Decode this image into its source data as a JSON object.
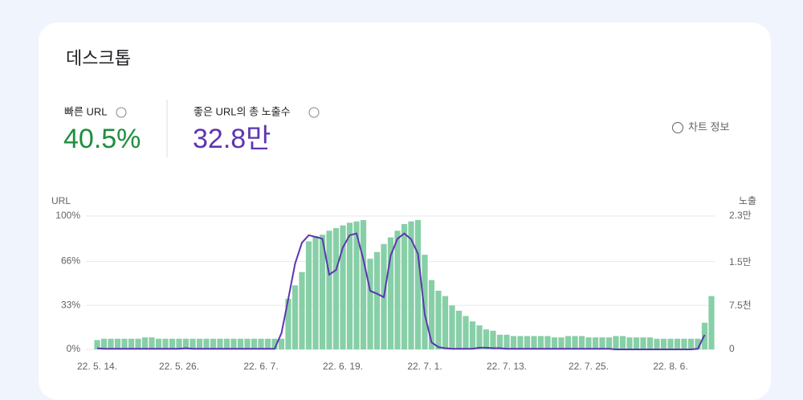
{
  "header": {
    "title": "데스크톱",
    "metrics": [
      {
        "label": "빠른 URL",
        "value": "40.5%",
        "color": "#1e8e3e"
      },
      {
        "label": "좋은 URL의 총 노출수",
        "value": "32.8만",
        "color": "#5e35b1"
      }
    ],
    "info": "차트 정보"
  },
  "chart_data": {
    "type": "bar",
    "y_label": "URL",
    "y2_label": "노출",
    "categories": [
      "22. 5. 14.",
      null,
      null,
      null,
      null,
      null,
      null,
      null,
      null,
      null,
      null,
      null,
      "22. 5. 26.",
      null,
      null,
      null,
      null,
      null,
      null,
      null,
      null,
      null,
      null,
      null,
      "22. 6. 7.",
      null,
      null,
      null,
      null,
      null,
      null,
      null,
      null,
      null,
      null,
      null,
      "22. 6. 19.",
      null,
      null,
      null,
      null,
      null,
      null,
      null,
      null,
      null,
      null,
      null,
      "22. 7. 1.",
      null,
      null,
      null,
      null,
      null,
      null,
      null,
      null,
      null,
      null,
      null,
      "22. 7. 13.",
      null,
      null,
      null,
      null,
      null,
      null,
      null,
      null,
      null,
      null,
      null,
      "22. 7. 25.",
      null,
      null,
      null,
      null,
      null,
      null,
      null,
      null,
      null,
      null,
      null,
      "22. 8. 6.",
      null,
      null,
      null,
      null,
      null,
      null
    ],
    "series": [
      {
        "name": "URL",
        "type": "bar",
        "color": "#87cfa7",
        "values": [
          7,
          8,
          8,
          8,
          8,
          8,
          8,
          9,
          9,
          8,
          8,
          8,
          8,
          8,
          8,
          8,
          8,
          8,
          8,
          8,
          8,
          8,
          8,
          8,
          8,
          8,
          8,
          8,
          38,
          48,
          58,
          81,
          85,
          86,
          89,
          91,
          93,
          95,
          96,
          97,
          68,
          73,
          79,
          84,
          89,
          94,
          96,
          97,
          71,
          52,
          44,
          40,
          33,
          29,
          25,
          21,
          18,
          15,
          14,
          11,
          11,
          10,
          10,
          10,
          10,
          10,
          10,
          9,
          9,
          10,
          10,
          10,
          9,
          9,
          9,
          9,
          10,
          10,
          9,
          9,
          9,
          9,
          8,
          8,
          8,
          8,
          8,
          8,
          8,
          20,
          40
        ]
      },
      {
        "name": "노출",
        "type": "line",
        "axis": "y2",
        "color": "#5e35b1",
        "values": [
          200,
          100,
          100,
          100,
          100,
          100,
          100,
          100,
          100,
          100,
          100,
          100,
          100,
          200,
          100,
          100,
          100,
          100,
          100,
          100,
          100,
          100,
          100,
          100,
          100,
          100,
          100,
          2800,
          8700,
          14800,
          18400,
          19700,
          19400,
          19100,
          12900,
          13700,
          17600,
          19700,
          20000,
          15500,
          10100,
          9600,
          9000,
          16200,
          19100,
          20000,
          19000,
          16500,
          6000,
          1200,
          400,
          200,
          100,
          100,
          100,
          100,
          300,
          300,
          200,
          200,
          100,
          100,
          100,
          100,
          100,
          100,
          100,
          100,
          100,
          100,
          100,
          100,
          100,
          100,
          100,
          100,
          0,
          0,
          0,
          0,
          0,
          0,
          0,
          0,
          0,
          0,
          0,
          0,
          100,
          2500,
          null
        ]
      }
    ],
    "ylim": [
      0,
      100
    ],
    "yticks": [
      {
        "value": 0,
        "label": "0%"
      },
      {
        "value": 33,
        "label": "33%"
      },
      {
        "value": 66,
        "label": "66%"
      },
      {
        "value": 100,
        "label": "100%"
      }
    ],
    "y2lim": [
      0,
      23000
    ],
    "y2ticks": [
      0,
      {
        "value": 7500,
        "label": "7.5천"
      },
      {
        "value": 15000,
        "label": "1.5만"
      },
      {
        "value": 23000,
        "label": "2.3만"
      }
    ],
    "grid": true
  }
}
